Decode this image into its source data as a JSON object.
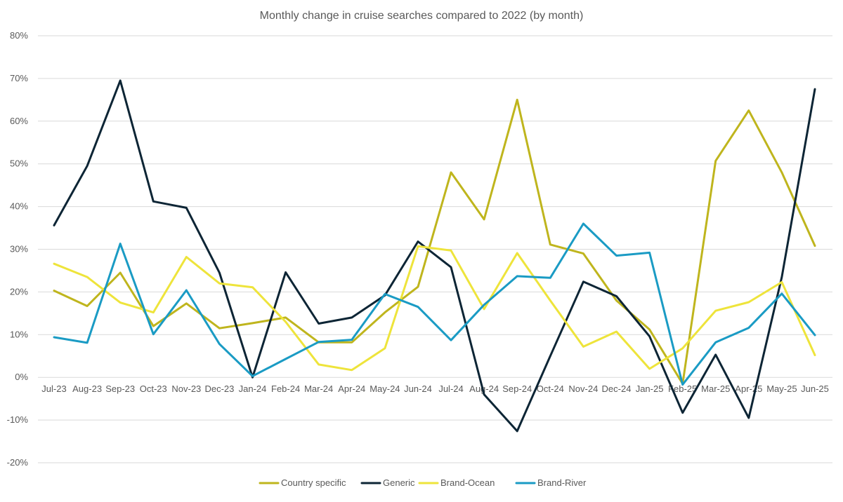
{
  "chart_data": {
    "type": "line",
    "title": "Monthly change in cruise searches compared to 2022 (by month)",
    "xlabel": "",
    "ylabel": "",
    "ylim": [
      -0.2,
      0.8
    ],
    "ytick_values": [
      -0.2,
      -0.1,
      0,
      0.1,
      0.2,
      0.3,
      0.4,
      0.5,
      0.6,
      0.7,
      0.8
    ],
    "ytick_labels": [
      "-20%",
      "-10%",
      "0%",
      "10%",
      "20%",
      "30%",
      "40%",
      "50%",
      "60%",
      "70%",
      "80%"
    ],
    "grid": true,
    "legend_position": "bottom",
    "categories": [
      "Jul-23",
      "Aug-23",
      "Sep-23",
      "Oct-23",
      "Nov-23",
      "Dec-23",
      "Jan-24",
      "Feb-24",
      "Mar-24",
      "Apr-24",
      "May-24",
      "Jun-24",
      "Jul-24",
      "Aug-24",
      "Sep-24",
      "Oct-24",
      "Nov-24",
      "Dec-24",
      "Jan-25",
      "Feb-25",
      "Mar-25",
      "Apr-25",
      "May-25",
      "Jun-25"
    ],
    "series": [
      {
        "name": "Country specific",
        "color": "#BFB51D",
        "values": [
          0.203,
          0.167,
          0.245,
          0.12,
          0.173,
          0.115,
          0.127,
          0.14,
          0.082,
          0.082,
          0.152,
          0.212,
          0.48,
          0.37,
          0.65,
          0.311,
          0.29,
          0.18,
          0.112,
          -0.015,
          0.507,
          0.625,
          0.48,
          0.308
        ]
      },
      {
        "name": "Generic",
        "color": "#0D2535",
        "values": [
          0.356,
          0.495,
          0.695,
          0.412,
          0.397,
          0.245,
          0.0,
          0.246,
          0.126,
          0.14,
          0.192,
          0.318,
          0.258,
          -0.04,
          -0.126,
          0.05,
          0.224,
          0.19,
          0.096,
          -0.083,
          0.053,
          -0.095,
          0.235,
          0.675
        ]
      },
      {
        "name": "Brand-Ocean",
        "color": "#EEE43B",
        "values": [
          0.266,
          0.235,
          0.175,
          0.152,
          0.282,
          0.22,
          0.211,
          0.13,
          0.03,
          0.017,
          0.068,
          0.307,
          0.297,
          0.16,
          0.291,
          0.18,
          0.072,
          0.107,
          0.02,
          0.068,
          0.156,
          0.176,
          0.223,
          0.052
        ]
      },
      {
        "name": "Brand-River",
        "color": "#1A9BC4",
        "values": [
          0.094,
          0.081,
          0.313,
          0.101,
          0.204,
          0.078,
          0.003,
          0.043,
          0.083,
          0.088,
          0.195,
          0.165,
          0.087,
          0.17,
          0.237,
          0.233,
          0.36,
          0.285,
          0.292,
          -0.017,
          0.082,
          0.116,
          0.196,
          0.099
        ]
      }
    ]
  }
}
